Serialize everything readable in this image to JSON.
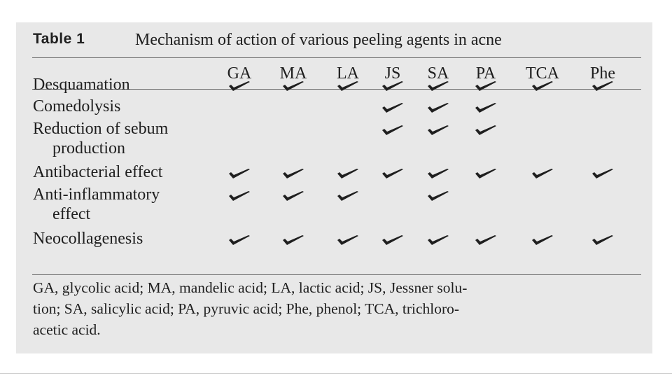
{
  "table": {
    "label": "Table 1",
    "title": "Mechanism of action of various peeling agents in acne",
    "columns": [
      "GA",
      "MA",
      "LA",
      "JS",
      "SA",
      "PA",
      "TCA",
      "Phe"
    ],
    "rows": [
      {
        "label": [
          "Desquamation"
        ],
        "marks": [
          true,
          true,
          true,
          true,
          true,
          true,
          true,
          true
        ]
      },
      {
        "label": [
          "Comedolysis"
        ],
        "marks": [
          false,
          false,
          false,
          true,
          true,
          true,
          false,
          false
        ]
      },
      {
        "label": [
          "Reduction of sebum",
          "production"
        ],
        "marks": [
          false,
          false,
          false,
          true,
          true,
          true,
          false,
          false
        ]
      },
      {
        "label": [
          "Antibacterial effect"
        ],
        "marks": [
          true,
          true,
          true,
          true,
          true,
          true,
          true,
          true
        ]
      },
      {
        "label": [
          "Anti-inflammatory",
          "effect"
        ],
        "marks": [
          true,
          true,
          true,
          false,
          true,
          false,
          false,
          false
        ]
      },
      {
        "label": [
          "Neocollagenesis"
        ],
        "marks": [
          true,
          true,
          true,
          true,
          true,
          true,
          true,
          true
        ]
      }
    ],
    "footnote": "GA, glycolic acid; MA, mandelic acid; LA, lactic acid; JS, Jessner solu-tion; SA, salicylic acid; PA, pyruvic acid; Phe, phenol; TCA, trichloro-acetic acid.",
    "footnote_lines": [
      "GA, glycolic acid; MA, mandelic acid; LA, lactic acid; JS, Jessner solu-",
      "tion; SA, salicylic acid; PA, pyruvic acid; Phe, phenol; TCA, trichloro-",
      "acetic acid."
    ],
    "mark_icon": "check-mark-icon",
    "colors": {
      "panel": "#e8e8e8",
      "text": "#1f1f1f",
      "rule": "#6a6a6a"
    }
  }
}
